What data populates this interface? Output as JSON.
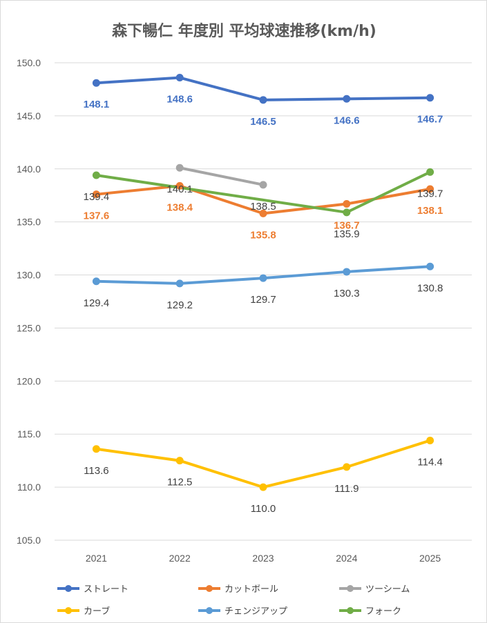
{
  "chart_data": {
    "type": "line",
    "title": "森下暢仁 年度別 平均球速推移(km/h)",
    "xlabel": "",
    "ylabel": "",
    "ylim": [
      105,
      150
    ],
    "y_ticks": [
      "105.0",
      "110.0",
      "115.0",
      "120.0",
      "125.0",
      "130.0",
      "135.0",
      "140.0",
      "145.0",
      "150.0"
    ],
    "categories": [
      "2021",
      "2022",
      "2023",
      "2024",
      "2025"
    ],
    "grid": "horizontal",
    "legend_position": "bottom",
    "series": [
      {
        "name": "ストレート",
        "color": "#4472C4",
        "values": [
          148.1,
          148.6,
          146.5,
          146.6,
          146.7
        ],
        "labels": [
          "148.1",
          "148.6",
          "146.5",
          "146.6",
          "146.7"
        ],
        "label_bold": true
      },
      {
        "name": "カットボール",
        "color": "#ED7D31",
        "values": [
          137.6,
          138.4,
          135.8,
          136.7,
          138.1
        ],
        "labels": [
          "137.6",
          "138.4",
          "135.8",
          "136.7",
          "138.1"
        ],
        "label_bold": true
      },
      {
        "name": "ツーシーム",
        "color": "#A5A5A5",
        "values": [
          null,
          140.1,
          138.5,
          null,
          null
        ],
        "labels": [
          null,
          "140.1",
          "138.5",
          null,
          null
        ],
        "label_bold": false
      },
      {
        "name": "カーブ",
        "color": "#FFC000",
        "values": [
          113.6,
          112.5,
          110.0,
          111.9,
          114.4
        ],
        "labels": [
          "113.6",
          "112.5",
          "110.0",
          "111.9",
          "114.4"
        ],
        "label_bold": false
      },
      {
        "name": "チェンジアップ",
        "color": "#5B9BD5",
        "values": [
          129.4,
          129.2,
          129.7,
          130.3,
          130.8
        ],
        "labels": [
          "129.4",
          "129.2",
          "129.7",
          "130.3",
          "130.8"
        ],
        "label_bold": false
      },
      {
        "name": "フォーク",
        "color": "#70AD47",
        "values": [
          139.4,
          null,
          null,
          135.9,
          139.7
        ],
        "labels": [
          "139.4",
          null,
          null,
          "135.9",
          "139.7"
        ],
        "label_bold": false
      }
    ]
  }
}
